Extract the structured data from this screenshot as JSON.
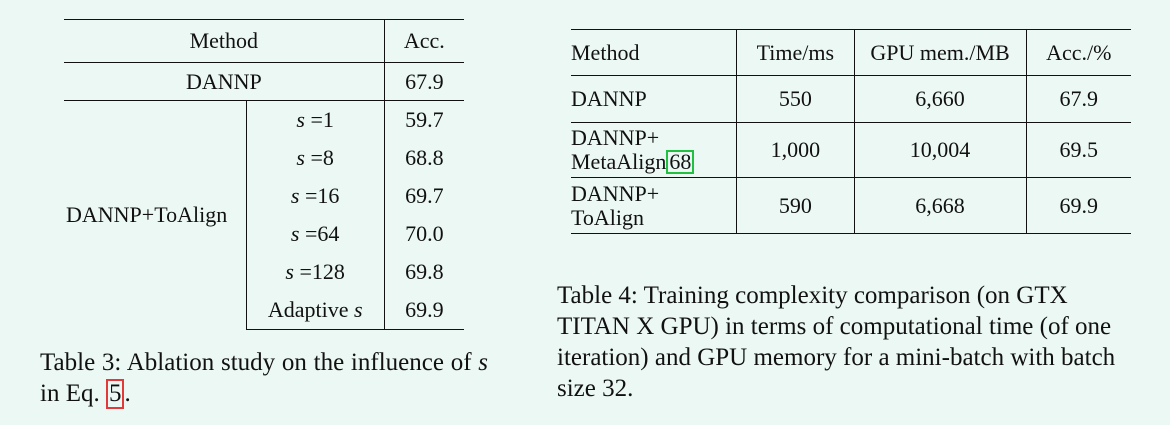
{
  "table3": {
    "header": {
      "method": "Method",
      "acc": "Acc."
    },
    "baseline": {
      "method": "DANNP",
      "acc": "67.9"
    },
    "group_label": "DANNP+ToAlign",
    "rows": [
      {
        "prefix": "",
        "var": "s",
        "suffix": " =1",
        "acc": "59.7"
      },
      {
        "prefix": "",
        "var": "s",
        "suffix": " =8",
        "acc": "68.8"
      },
      {
        "prefix": "",
        "var": "s",
        "suffix": " =16",
        "acc": "69.7"
      },
      {
        "prefix": "",
        "var": "s",
        "suffix": " =64",
        "acc": "70.0"
      },
      {
        "prefix": "",
        "var": "s",
        "suffix": " =128",
        "acc": "69.8"
      },
      {
        "prefix": "Adaptive ",
        "var": "s",
        "suffix": "",
        "acc": "69.9"
      }
    ],
    "caption": {
      "part1": "Table 3:  Ablation study on the influence of ",
      "var": "s",
      "part2": " in Eq. ",
      "ref": "5",
      "part3": "."
    }
  },
  "table4": {
    "header": {
      "method": "Method",
      "time": "Time/ms",
      "gpu": "GPU mem./MB",
      "acc": "Acc./%"
    },
    "rows": [
      {
        "line1": "DANNP",
        "line2": "",
        "cite": "",
        "time": "550",
        "gpu": "6,660",
        "acc": "67.9"
      },
      {
        "line1": "DANNP+",
        "line2": "MetaAlign",
        "cite": "68",
        "time": "1,000",
        "gpu": "10,004",
        "acc": "69.5"
      },
      {
        "line1": "DANNP+",
        "line2": "ToAlign",
        "cite": "",
        "time": "590",
        "gpu": "6,668",
        "acc": "69.9"
      }
    ],
    "caption": "Table 4: Training complexity comparison (on GTX TITAN X GPU) in terms of computational time (of one iteration) and GPU memory for a mini-batch with batch size 32."
  }
}
